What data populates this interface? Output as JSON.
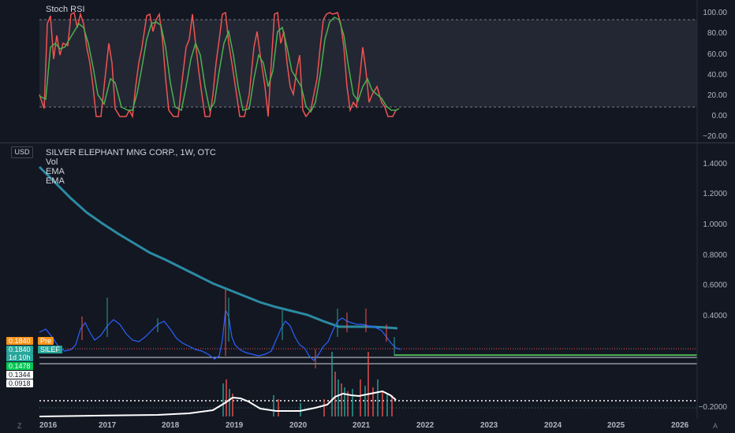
{
  "rsi_pane": {
    "title": "Stoch RSI",
    "axis": [
      "100.00",
      "80.00",
      "60.00",
      "40.00",
      "20.00",
      "0.00",
      "−20.00"
    ]
  },
  "price_pane": {
    "currency": "USD",
    "title": "SILVER ELEPHANT MNG CORP., 1W, OTC",
    "indicators": [
      "Vol",
      "EMA",
      "EMA"
    ],
    "axis": [
      "1.4000",
      "1.2000",
      "1.0000",
      "0.8000",
      "0.6000",
      "0.4000",
      "−0.2000"
    ],
    "badges": {
      "pre_price": "0.1840",
      "pre_label": "Pre",
      "last_price": "0.1840",
      "symbol": "SILEF",
      "countdown": "1d 10h",
      "ema_green": "0.1478",
      "level_1": "0.1344",
      "level_2": "0.0918"
    }
  },
  "x_axis": [
    "2016",
    "2017",
    "2018",
    "2019",
    "2020",
    "2021",
    "2022",
    "2023",
    "2024",
    "2025",
    "2026"
  ],
  "corner_left": "Z",
  "corner_right": "A",
  "colors": {
    "background": "#131722",
    "ema_long": "#2b8ba3",
    "ema_short": "#2962ff",
    "up": "#26a69a",
    "down": "#ef5350",
    "rsi_k": "#ef5350",
    "rsi_d": "#4caf50"
  }
}
